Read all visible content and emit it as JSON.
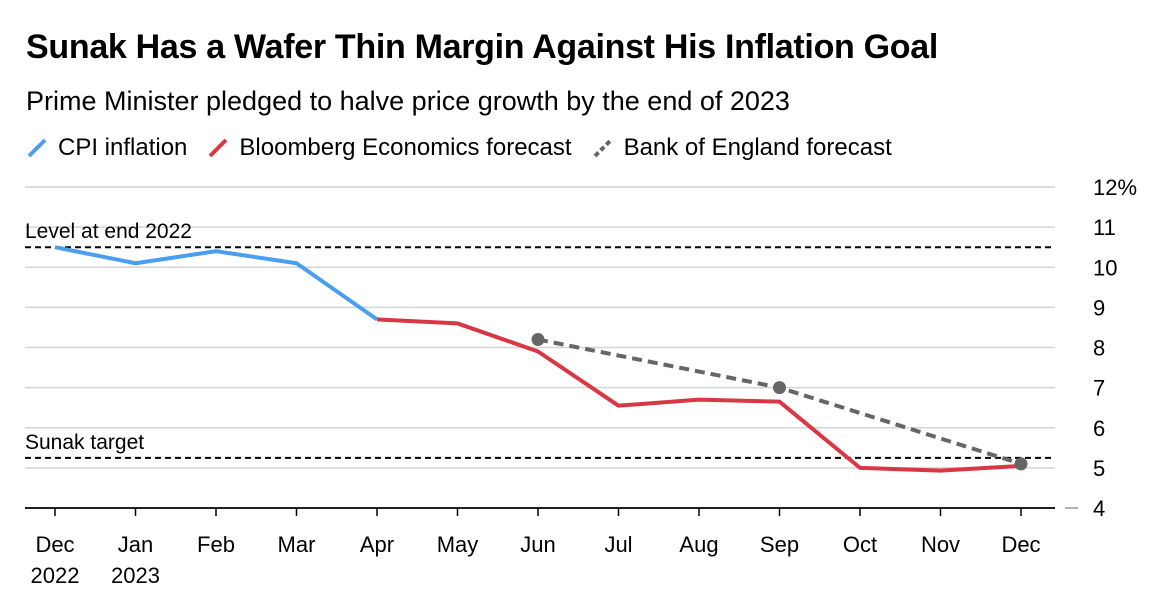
{
  "title": "Sunak Has a Wafer Thin Margin Against His Inflation Goal",
  "subtitle": "Prime Minister pledged to halve price growth by the end of 2023",
  "legend": [
    {
      "label": "CPI inflation",
      "color": "#4a9ef0",
      "style": "solid"
    },
    {
      "label": "Bloomberg Economics forecast",
      "color": "#d93744",
      "style": "solid"
    },
    {
      "label": "Bank of England forecast",
      "color": "#666666",
      "style": "dashed"
    }
  ],
  "chart_data": {
    "type": "line",
    "x_categories": [
      "Dec 2022",
      "Jan 2023",
      "Feb",
      "Mar",
      "Apr",
      "May",
      "Jun",
      "Jul",
      "Aug",
      "Sep",
      "Oct",
      "Nov",
      "Dec"
    ],
    "x_tick_labels": [
      {
        "line1": "Dec",
        "line2": "2022"
      },
      {
        "line1": "Jan",
        "line2": "2023"
      },
      {
        "line1": "Feb",
        "line2": ""
      },
      {
        "line1": "Mar",
        "line2": ""
      },
      {
        "line1": "Apr",
        "line2": ""
      },
      {
        "line1": "May",
        "line2": ""
      },
      {
        "line1": "Jun",
        "line2": ""
      },
      {
        "line1": "Jul",
        "line2": ""
      },
      {
        "line1": "Aug",
        "line2": ""
      },
      {
        "line1": "Sep",
        "line2": ""
      },
      {
        "line1": "Oct",
        "line2": ""
      },
      {
        "line1": "Nov",
        "line2": ""
      },
      {
        "line1": "Dec",
        "line2": ""
      }
    ],
    "y_ticks": [
      {
        "value": 12,
        "label": "12%"
      },
      {
        "value": 11,
        "label": "11"
      },
      {
        "value": 10,
        "label": "10"
      },
      {
        "value": 9,
        "label": "9"
      },
      {
        "value": 8,
        "label": "8"
      },
      {
        "value": 7,
        "label": "7"
      },
      {
        "value": 6,
        "label": "6"
      },
      {
        "value": 5,
        "label": "5"
      },
      {
        "value": 4,
        "label": "4"
      }
    ],
    "ylim": [
      4,
      12
    ],
    "y_axis_side": "right",
    "grid": true,
    "series": [
      {
        "name": "CPI inflation",
        "color": "#4a9ef0",
        "style": "solid",
        "points": [
          [
            "Dec 2022",
            10.5
          ],
          [
            "Jan 2023",
            10.1
          ],
          [
            "Feb",
            10.4
          ],
          [
            "Mar",
            10.1
          ],
          [
            "Apr",
            8.7
          ]
        ]
      },
      {
        "name": "Bloomberg Economics forecast",
        "color": "#d93744",
        "style": "solid",
        "points": [
          [
            "Apr",
            8.7
          ],
          [
            "May",
            8.6
          ],
          [
            "Jun",
            7.9
          ],
          [
            "Jul",
            6.55
          ],
          [
            "Aug",
            6.7
          ],
          [
            "Sep",
            6.65
          ],
          [
            "Oct",
            5.0
          ],
          [
            "Nov",
            4.93
          ],
          [
            "Dec",
            5.05
          ]
        ]
      },
      {
        "name": "Bank of England forecast",
        "color": "#666666",
        "style": "dashed",
        "markers": true,
        "points": [
          [
            "Jun",
            8.2
          ],
          [
            "Sep",
            7.0
          ],
          [
            "Dec",
            5.1
          ]
        ]
      }
    ],
    "reference_lines": [
      {
        "label": "Level at end 2022",
        "value": 10.5
      },
      {
        "label": "Sunak target",
        "value": 5.25
      }
    ]
  }
}
